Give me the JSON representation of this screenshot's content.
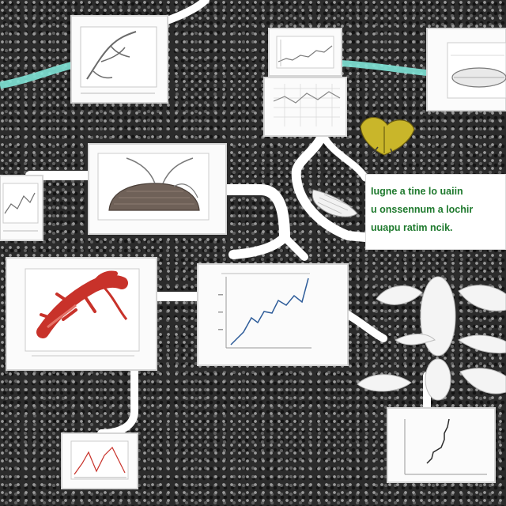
{
  "note": {
    "lines": [
      "Iugne a tine lo uaiin",
      "u onssennum a lochir",
      "uuapu ratim ncik."
    ],
    "text_color": "#1f7a2e"
  },
  "colors": {
    "connector": "#ffffff",
    "glow_connector": "#7fe3d6",
    "creature_red": "#c8322a",
    "insect_yellow": "#c9b62a",
    "plot_line": "#2f5d9a"
  },
  "panels": [
    {
      "id": "specimen-plot-top-left",
      "content": "branching-specimen"
    },
    {
      "id": "line-plot-top-center",
      "content": "line-chart"
    },
    {
      "id": "grid-plot-center",
      "content": "grid-chart"
    },
    {
      "id": "cylinder-diagram-top-right",
      "content": "cylinder"
    },
    {
      "id": "sketch-plot-left-edge",
      "content": "line-sketch"
    },
    {
      "id": "nest-diagram-center-left",
      "content": "nest-illustration"
    },
    {
      "id": "creature-diagram-left",
      "content": "red-creature"
    },
    {
      "id": "line-chart-center",
      "content": "line-chart"
    },
    {
      "id": "small-plot-bottom-left",
      "content": "line-chart"
    },
    {
      "id": "descending-plot-bottom-right",
      "content": "line-chart"
    }
  ],
  "illustrations": [
    "yellow-insect-icon",
    "white-wing-icon",
    "white-moth-icon"
  ]
}
